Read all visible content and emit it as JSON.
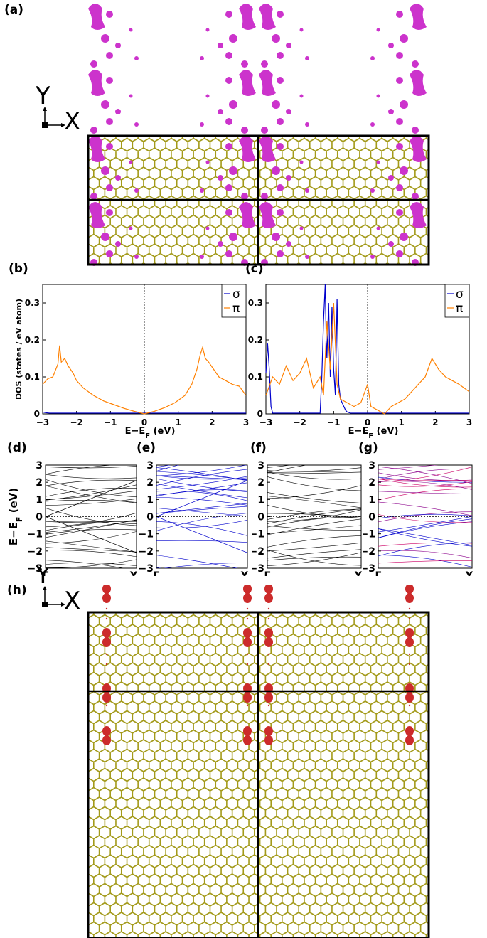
{
  "panels": {
    "a": "(a)",
    "b": "(b)",
    "c": "(c)",
    "d": "(d)",
    "e": "(e)",
    "f": "(f)",
    "g": "(g)",
    "h": "(h)"
  },
  "axes_indicator": {
    "y": "Y",
    "x": "X"
  },
  "colors": {
    "lattice": "#a39a1a",
    "isosurface_a": "#cc33cc",
    "isosurface_h": "#cc2b2b",
    "sigma": "#0000cc",
    "pi": "#ff8000",
    "bands_black": "#000000",
    "bands_blue": "#0000cc",
    "bands_purple": "#8b008b"
  },
  "chart_data": [
    {
      "id": "b",
      "type": "line",
      "ylabel": "DOS (states / eV atom)",
      "xlabel": "E−E_F (eV)",
      "xlim": [
        -3,
        3
      ],
      "ylim": [
        0,
        0.35
      ],
      "xticks": [
        "-3",
        "-2",
        "-1",
        "0",
        "1",
        "2",
        "3"
      ],
      "yticks": [
        "0",
        "0.1",
        "0.2",
        "0.3"
      ],
      "legend": [
        "σ",
        "π"
      ],
      "legend_position": "top-right",
      "series": [
        {
          "name": "σ",
          "x": [
            -3,
            -2.9,
            -2.8,
            3
          ],
          "y": [
            0.005,
            0.003,
            0.002,
            0.002
          ]
        },
        {
          "name": "π",
          "x": [
            -3,
            -2.85,
            -2.7,
            -2.55,
            -2.5,
            -2.45,
            -2.35,
            -2.25,
            -2.1,
            -2.0,
            -1.8,
            -1.5,
            -1.2,
            -0.9,
            -0.6,
            -0.3,
            0,
            0.3,
            0.6,
            0.9,
            1.2,
            1.4,
            1.55,
            1.65,
            1.72,
            1.8,
            1.9,
            2.05,
            2.2,
            2.4,
            2.6,
            2.8,
            3.0
          ],
          "y": [
            0.08,
            0.095,
            0.1,
            0.135,
            0.185,
            0.14,
            0.15,
            0.13,
            0.11,
            0.09,
            0.07,
            0.05,
            0.035,
            0.025,
            0.015,
            0.007,
            0,
            0.007,
            0.017,
            0.03,
            0.05,
            0.08,
            0.12,
            0.16,
            0.18,
            0.15,
            0.14,
            0.12,
            0.1,
            0.09,
            0.08,
            0.075,
            0.05
          ]
        }
      ]
    },
    {
      "id": "c",
      "type": "line",
      "xlabel": "E−E_F (eV)",
      "xlim": [
        -3,
        3
      ],
      "ylim": [
        0,
        0.35
      ],
      "xticks": [
        "-3",
        "-2",
        "-1",
        "0",
        "1",
        "2",
        "3"
      ],
      "yticks": [
        "0",
        "0.1",
        "0.2",
        "0.3"
      ],
      "legend": [
        "σ",
        "π"
      ],
      "legend_position": "top-right",
      "series": [
        {
          "name": "σ",
          "x": [
            -3,
            -2.95,
            -2.9,
            -2.85,
            -2.8,
            -2.75,
            -1.4,
            -1.35,
            -1.3,
            -1.25,
            -1.22,
            -1.2,
            -1.15,
            -1.1,
            -1.05,
            -1.0,
            -0.95,
            -0.9,
            -0.85,
            -0.8,
            -0.75,
            -0.7,
            -0.65,
            -0.6,
            -0.5,
            3
          ],
          "y": [
            0.11,
            0.19,
            0.12,
            0.02,
            0.002,
            0.002,
            0.002,
            0.1,
            0.25,
            0.35,
            0.2,
            0.15,
            0.3,
            0.1,
            0.29,
            0.12,
            0.05,
            0.31,
            0.08,
            0.04,
            0.03,
            0.02,
            0.01,
            0.005,
            0.002,
            0.002
          ]
        },
        {
          "name": "π",
          "x": [
            -3,
            -2.8,
            -2.6,
            -2.4,
            -2.2,
            -2.0,
            -1.8,
            -1.6,
            -1.4,
            -1.3,
            -1.2,
            -1.1,
            -1.0,
            -0.9,
            -0.8,
            -0.6,
            -0.4,
            -0.2,
            0,
            0.1,
            0.3,
            0.5,
            0.7,
            0.9,
            1.1,
            1.3,
            1.5,
            1.7,
            1.9,
            2.1,
            2.3,
            2.5,
            2.7,
            3.0
          ],
          "y": [
            0.05,
            0.1,
            0.08,
            0.13,
            0.09,
            0.11,
            0.15,
            0.07,
            0.1,
            0.05,
            0.25,
            0.12,
            0.3,
            0.08,
            0.04,
            0.03,
            0.02,
            0.03,
            0.08,
            0.02,
            0.01,
            0,
            0.02,
            0.03,
            0.04,
            0.06,
            0.08,
            0.1,
            0.15,
            0.12,
            0.1,
            0.09,
            0.08,
            0.06
          ]
        }
      ]
    },
    {
      "id": "d",
      "type": "line",
      "ylabel": "E−E_F (eV)",
      "ylim": [
        -3,
        3
      ],
      "yticks": [
        "-3",
        "-2",
        "-1",
        "0",
        "1",
        "2",
        "3"
      ],
      "xticks": [
        "Γ",
        "Y"
      ]
    },
    {
      "id": "e",
      "type": "line",
      "ylim": [
        -3,
        3
      ],
      "yticks": [
        "-3",
        "-2",
        "-1",
        "0",
        "1",
        "2",
        "3"
      ],
      "xticks": [
        "Γ",
        "Y"
      ]
    },
    {
      "id": "f",
      "type": "line",
      "ylim": [
        -3,
        3
      ],
      "yticks": [
        "-3",
        "-2",
        "-1",
        "0",
        "1",
        "2",
        "3"
      ],
      "xticks": [
        "Γ",
        "Y"
      ]
    },
    {
      "id": "g",
      "type": "line",
      "ylim": [
        -3,
        3
      ],
      "yticks": [
        "-3",
        "-2",
        "-1",
        "0",
        "1",
        "2",
        "3"
      ],
      "xticks": [
        "Γ",
        "Y"
      ]
    }
  ]
}
